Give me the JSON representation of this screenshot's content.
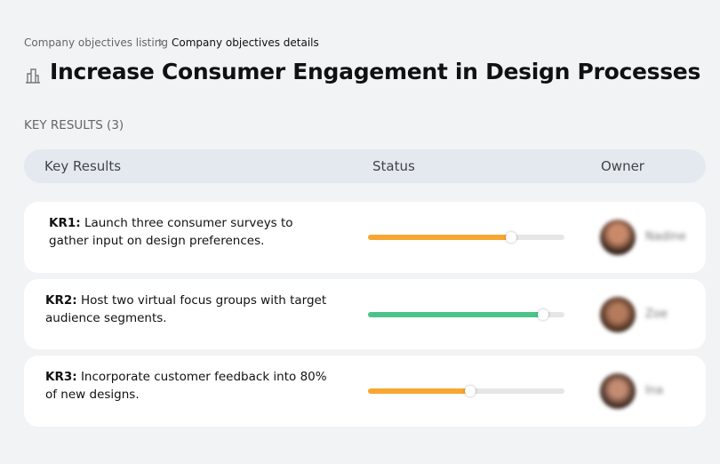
{
  "breadcrumb": {
    "parent": "Company objectives listing",
    "current": "Company objectives details"
  },
  "title": "Increase Consumer Engagement in Design Processes",
  "section_label": "KEY RESULTS (3)",
  "table": {
    "headers": [
      "Key Results",
      "Status",
      "Owner"
    ],
    "rows": [
      {
        "label": "KR1:",
        "text": "Launch three consumer surveys to gather input on design preferences.",
        "progress": 73,
        "color": "#f7a731",
        "owner": "Nadine"
      },
      {
        "label": "KR2:",
        "text": "Host two virtual focus groups with target audience segments.",
        "progress": 89,
        "color": "#4cc38a",
        "owner": "Zoe"
      },
      {
        "label": "KR3:",
        "text": "Incorporate customer feedback into 80% of new designs.",
        "progress": 52,
        "color": "#f7a731",
        "owner": "Ina"
      }
    ]
  }
}
